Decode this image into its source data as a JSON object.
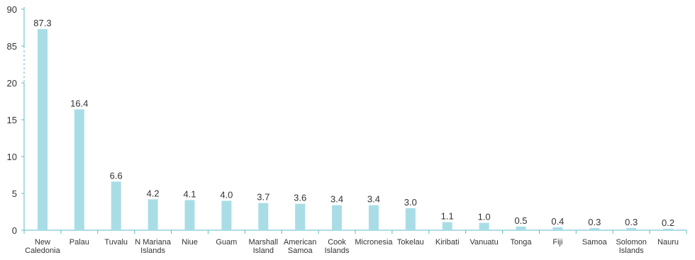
{
  "chart_data": {
    "type": "bar",
    "title": "",
    "xlabel": "",
    "ylabel": "",
    "axis_break": true,
    "y_ticks": [
      "0",
      "5",
      "10",
      "15",
      "20",
      "85",
      "90"
    ],
    "categories": [
      "New Caledonia",
      "Palau",
      "Tuvalu",
      "N Mariana Islands",
      "Niue",
      "Guam",
      "Marshall Island",
      "American Samoa",
      "Cook Islands",
      "Micronesia",
      "Tokelau",
      "Kiribati",
      "Vanuatu",
      "Tonga",
      "Fiji",
      "Samoa",
      "Solomon Islands",
      "Nauru"
    ],
    "values": [
      87.3,
      16.4,
      6.6,
      4.2,
      4.1,
      4.0,
      3.7,
      3.6,
      3.4,
      3.4,
      3.0,
      1.1,
      1.0,
      0.5,
      0.4,
      0.3,
      0.3,
      0.2
    ],
    "data_labels": [
      "87.3",
      "16.4",
      "6.6",
      "4.2",
      "4.1",
      "4.0",
      "3.7",
      "3.6",
      "3.4",
      "3.4",
      "3.0",
      "1.1",
      "1.0",
      "0.5",
      "0.4",
      "0.3",
      "0.3",
      "0.2"
    ],
    "colors": {
      "bar": "#a9dde6",
      "axis": "#5fb9cc",
      "text": "#333333"
    },
    "grid": false,
    "legend": "none"
  }
}
